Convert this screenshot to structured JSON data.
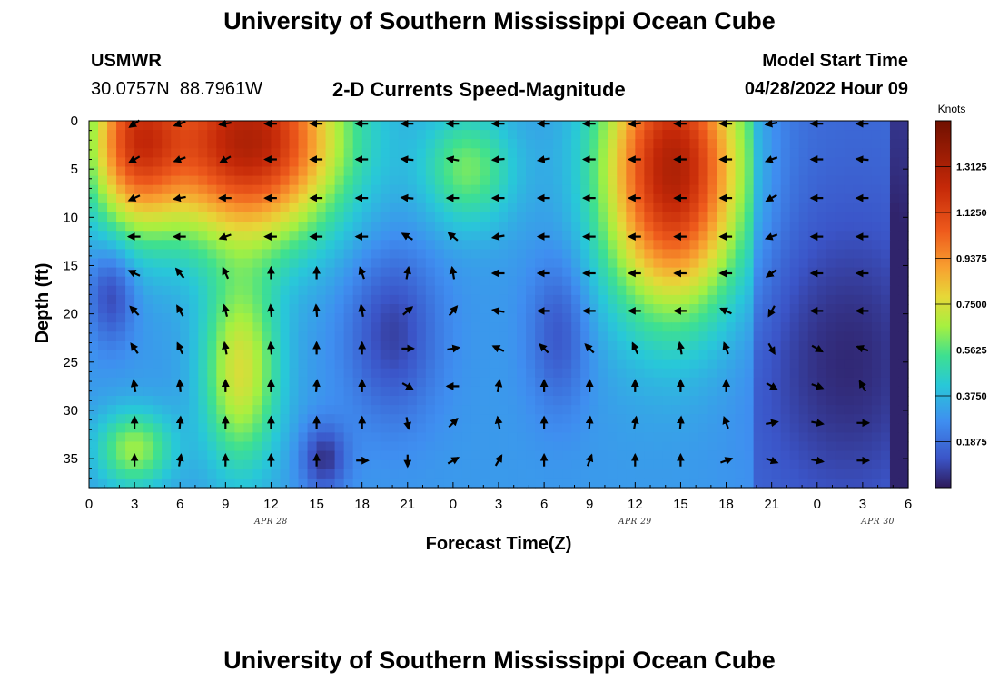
{
  "page": {
    "title": "University of Southern Mississippi Ocean Cube",
    "station_name": "USMWR",
    "station_coords": "30.0757N  88.7961W",
    "product": "2-D Currents Speed-Magnitude",
    "model_start_label": "Model Start Time",
    "model_start_value": "04/28/2022 Hour 09",
    "footer_title": "University of Southern Mississippi Ocean Cube"
  },
  "chart_data": {
    "type": "heatmap",
    "xlabel": "Forecast Time(Z)",
    "ylabel": "Depth (ft)",
    "x_tick_labels": [
      "0",
      "3",
      "6",
      "9",
      "12",
      "15",
      "18",
      "21",
      "0",
      "3",
      "6",
      "9",
      "12",
      "15",
      "18",
      "21",
      "0",
      "3",
      "6"
    ],
    "x_range_hours": [
      0,
      54
    ],
    "date_labels": [
      {
        "label": "APR 28",
        "hour": 12
      },
      {
        "label": "APR 29",
        "hour": 36
      },
      {
        "label": "APR 30",
        "hour": 52
      }
    ],
    "y_ticks": [
      0,
      5,
      10,
      15,
      20,
      25,
      30,
      35
    ],
    "y_range_ft": [
      0,
      38
    ],
    "colorbar": {
      "title": "Knots",
      "ticks": [
        "1.3125",
        "1.1250",
        "0.9375",
        "0.7500",
        "0.5625",
        "0.3750",
        "0.1875"
      ],
      "range": [
        0,
        1.5
      ]
    },
    "arrow_times": [
      3,
      6,
      9,
      12,
      15,
      18,
      21,
      24,
      27,
      30,
      33,
      36,
      39,
      42,
      45,
      48,
      51
    ],
    "arrow_depths": [
      0.3,
      4,
      8,
      12,
      15.8,
      19.7,
      23.6,
      27.5,
      31.3,
      35.2
    ],
    "arrow_angles_deg": [
      [
        215,
        200,
        190,
        180,
        180,
        180,
        180,
        180,
        180,
        180,
        180,
        185,
        180,
        180,
        190,
        180,
        180
      ],
      [
        210,
        200,
        210,
        180,
        180,
        180,
        175,
        170,
        185,
        190,
        180,
        180,
        180,
        180,
        200,
        180,
        175
      ],
      [
        205,
        190,
        180,
        180,
        180,
        180,
        175,
        180,
        180,
        180,
        180,
        180,
        180,
        180,
        210,
        180,
        180
      ],
      [
        180,
        180,
        200,
        180,
        180,
        180,
        150,
        140,
        190,
        180,
        180,
        180,
        180,
        180,
        200,
        180,
        180
      ],
      [
        155,
        130,
        115,
        90,
        90,
        110,
        80,
        100,
        180,
        180,
        180,
        180,
        180,
        180,
        215,
        180,
        180
      ],
      [
        135,
        120,
        105,
        95,
        95,
        100,
        40,
        50,
        170,
        180,
        180,
        180,
        180,
        155,
        240,
        180,
        180
      ],
      [
        125,
        115,
        100,
        95,
        90,
        90,
        0,
        10,
        155,
        135,
        135,
        115,
        100,
        110,
        300,
        330,
        160
      ],
      [
        100,
        95,
        90,
        90,
        85,
        90,
        -30,
        180,
        80,
        90,
        90,
        90,
        90,
        90,
        -30,
        -20,
        120
      ],
      [
        90,
        85,
        90,
        90,
        90,
        90,
        -80,
        45,
        100,
        90,
        85,
        80,
        85,
        110,
        10,
        -10,
        0
      ],
      [
        90,
        80,
        90,
        90,
        90,
        0,
        -90,
        30,
        60,
        90,
        70,
        90,
        90,
        20,
        -20,
        -10,
        0
      ]
    ]
  }
}
